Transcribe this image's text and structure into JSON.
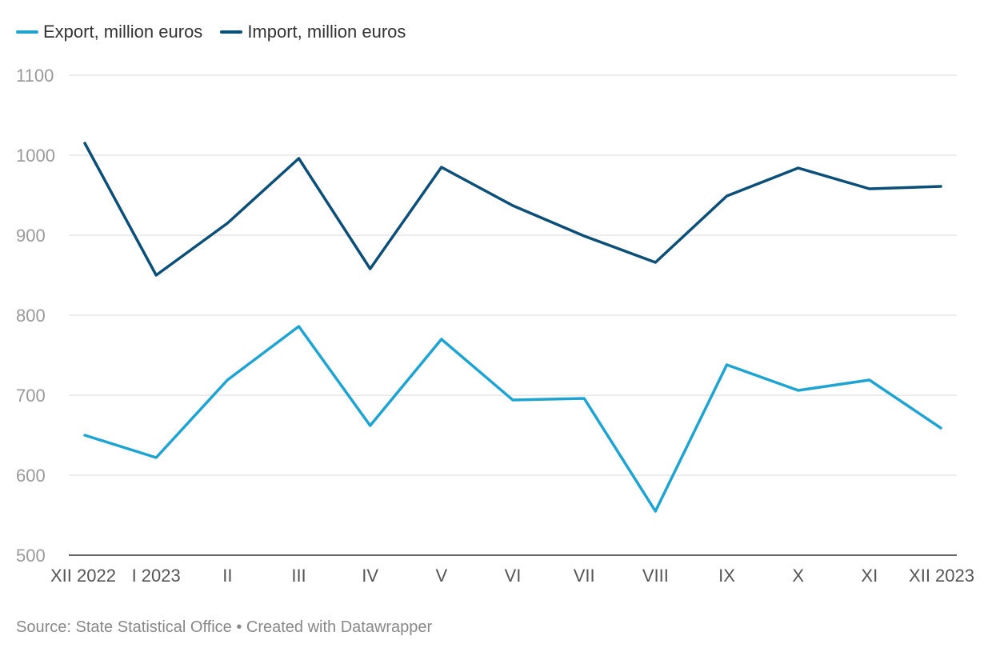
{
  "chart_data": {
    "type": "line",
    "categories": [
      "XII 2022",
      "I 2023",
      "II",
      "III",
      "IV",
      "V",
      "VI",
      "VII",
      "VIII",
      "IX",
      "X",
      "XI",
      "XII 2023"
    ],
    "series": [
      {
        "name": "Export, million euros",
        "color": "#1fa4d2",
        "values": [
          650,
          622,
          719,
          786,
          662,
          770,
          694,
          696,
          555,
          738,
          706,
          719,
          659
        ]
      },
      {
        "name": "Import, million euros",
        "color": "#0b4f78",
        "values": [
          1015,
          850,
          915,
          996,
          858,
          985,
          937,
          899,
          866,
          949,
          984,
          958,
          961
        ]
      }
    ],
    "ylim": [
      500,
      1100
    ],
    "yticks": [
      "500",
      "600",
      "700",
      "800",
      "900",
      "1000",
      "1100"
    ],
    "grid": true,
    "legend_position": "top-left"
  },
  "source_text": "Source: State Statistical Office • Created with Datawrapper"
}
